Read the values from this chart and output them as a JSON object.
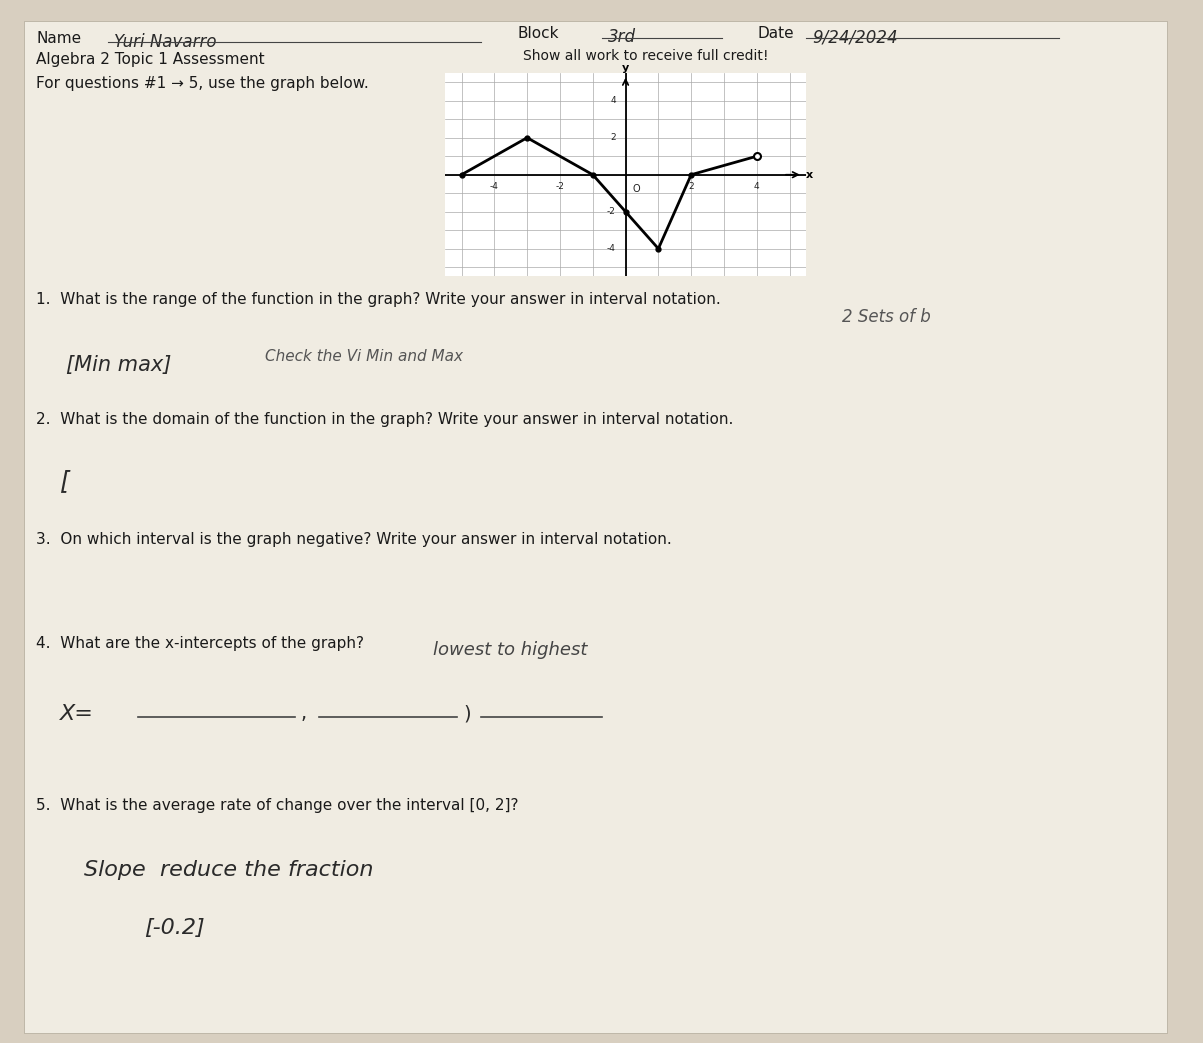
{
  "bg_color": "#d8cfc0",
  "paper_color": "#f0ece2",
  "name_value": "Yuri Navarro",
  "block_value": "3rd",
  "date_value": "9/24/2024",
  "show_all_work": "Show all work to receive full credit!",
  "course": "Algebra 2 Topic 1 Assessment",
  "intro": "For questions #1 → 5, use the graph below.",
  "graph_x": [
    -5,
    -3,
    -1,
    0,
    1,
    2,
    4
  ],
  "graph_y": [
    0,
    2,
    0,
    -2,
    -4,
    0,
    1
  ],
  "q1": "1.  What is the range of the function in the graph? Write your answer in interval notation.",
  "q1_ans": "[Min max]",
  "q1_ans2": "Check the Vi Min and Max",
  "q1_note": "2 Sets of b",
  "q2": "2.  What is the domain of the function in the graph? Write your answer in interval notation.",
  "q2_ans": "[",
  "q3": "3.  On which interval is the graph negative? Write your answer in interval notation.",
  "q4": "4.  What are the x-intercepts of the graph?",
  "q4_note": "lowest to highest",
  "q5": "5.  What is the average rate of change over the interval [0, 2]?",
  "q5_ans1": "Slope  reduce the fraction",
  "q5_ans2": "[-0.2]"
}
